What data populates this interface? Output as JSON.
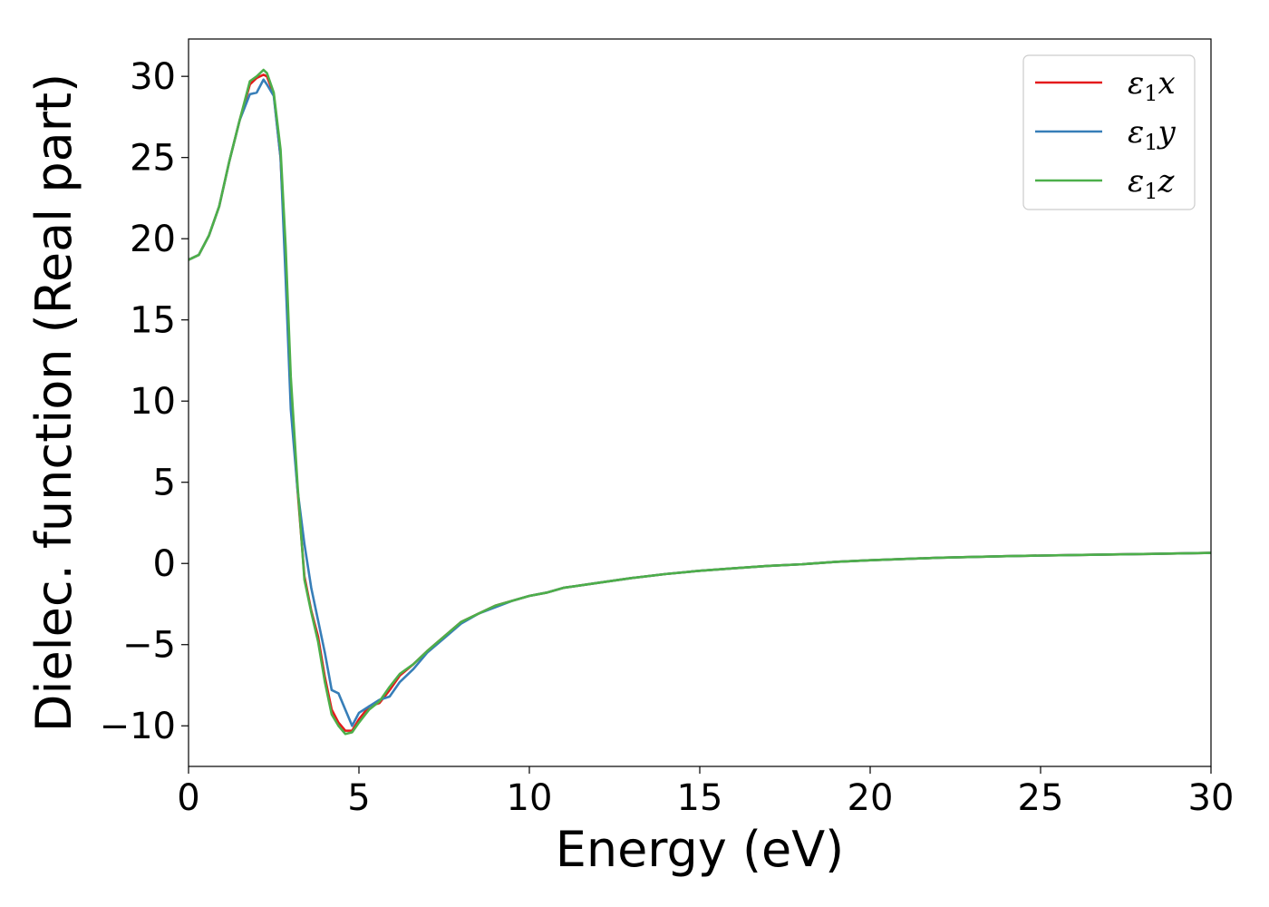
{
  "chart_data": {
    "type": "line",
    "title": "",
    "xlabel": "Energy (eV)",
    "ylabel": "Dielec. function (Real part)",
    "xlim": [
      0,
      30
    ],
    "ylim": [
      -12.5,
      32.3
    ],
    "xticks": [
      0,
      5,
      10,
      15,
      20,
      25,
      30
    ],
    "xtick_labels": [
      "0",
      "5",
      "10",
      "15",
      "20",
      "25",
      "30"
    ],
    "yticks": [
      -10,
      -5,
      0,
      5,
      10,
      15,
      20,
      25,
      30
    ],
    "ytick_labels": [
      "−10",
      "−5",
      "0",
      "5",
      "10",
      "15",
      "20",
      "25",
      "30"
    ],
    "grid": false,
    "legend_position": "top-right",
    "series": [
      {
        "name": "ε₁x",
        "symbol": "ε",
        "subscript": "1",
        "suffix": "x",
        "color": "#e41a1c",
        "x": [
          0,
          0.3,
          0.6,
          0.9,
          1.2,
          1.5,
          1.8,
          2.0,
          2.2,
          2.3,
          2.5,
          2.7,
          2.85,
          3.0,
          3.2,
          3.4,
          3.6,
          3.8,
          4.0,
          4.2,
          4.4,
          4.6,
          4.8,
          5.0,
          5.3,
          5.6,
          5.9,
          6.2,
          6.6,
          7.0,
          7.5,
          8.0,
          8.5,
          9.0,
          9.5,
          10.0,
          10.5,
          11,
          12,
          13,
          14,
          15,
          16,
          17,
          18,
          19,
          20,
          22,
          24,
          26,
          28,
          30
        ],
        "values": [
          18.7,
          19.0,
          20.2,
          22.0,
          24.8,
          27.3,
          29.5,
          29.9,
          30.1,
          30.0,
          28.9,
          25.0,
          18.5,
          10.5,
          4.5,
          -0.8,
          -2.9,
          -4.5,
          -7.0,
          -9.0,
          -9.8,
          -10.3,
          -10.3,
          -9.6,
          -8.8,
          -8.6,
          -7.8,
          -6.9,
          -6.2,
          -5.4,
          -4.5,
          -3.6,
          -3.1,
          -2.6,
          -2.3,
          -2.0,
          -1.8,
          -1.5,
          -1.2,
          -0.9,
          -0.65,
          -0.45,
          -0.3,
          -0.15,
          -0.05,
          0.1,
          0.2,
          0.35,
          0.45,
          0.52,
          0.58,
          0.65
        ]
      },
      {
        "name": "ε₁y",
        "symbol": "ε",
        "subscript": "1",
        "suffix": "y",
        "color": "#377eb8",
        "x": [
          0,
          0.3,
          0.6,
          0.9,
          1.2,
          1.5,
          1.8,
          2.0,
          2.2,
          2.3,
          2.5,
          2.7,
          2.85,
          3.0,
          3.2,
          3.4,
          3.6,
          3.8,
          4.0,
          4.2,
          4.4,
          4.6,
          4.8,
          5.0,
          5.3,
          5.6,
          5.9,
          6.2,
          6.6,
          7.0,
          7.5,
          8.0,
          8.5,
          9.0,
          9.5,
          10.0,
          10.5,
          11,
          12,
          13,
          14,
          15,
          16,
          17,
          18,
          19,
          20,
          22,
          24,
          26,
          28,
          30
        ],
        "values": [
          18.7,
          19.0,
          20.2,
          22.0,
          24.8,
          27.3,
          28.9,
          29.0,
          29.8,
          29.5,
          28.8,
          25.0,
          17.5,
          9.5,
          4.5,
          1.2,
          -1.5,
          -3.5,
          -5.5,
          -7.8,
          -8.0,
          -9.0,
          -10.0,
          -9.2,
          -8.8,
          -8.4,
          -8.2,
          -7.3,
          -6.5,
          -5.5,
          -4.6,
          -3.7,
          -3.1,
          -2.7,
          -2.3,
          -2.0,
          -1.8,
          -1.5,
          -1.2,
          -0.9,
          -0.65,
          -0.45,
          -0.3,
          -0.15,
          -0.05,
          0.1,
          0.2,
          0.35,
          0.45,
          0.52,
          0.58,
          0.65
        ]
      },
      {
        "name": "ε₁z",
        "symbol": "ε",
        "subscript": "1",
        "suffix": "z",
        "color": "#4daf4a",
        "x": [
          0,
          0.3,
          0.6,
          0.9,
          1.2,
          1.5,
          1.8,
          2.0,
          2.2,
          2.3,
          2.5,
          2.7,
          2.85,
          3.0,
          3.2,
          3.4,
          3.6,
          3.8,
          4.0,
          4.2,
          4.4,
          4.6,
          4.8,
          5.0,
          5.3,
          5.6,
          5.9,
          6.2,
          6.6,
          7.0,
          7.5,
          8.0,
          8.5,
          9.0,
          9.5,
          10.0,
          10.5,
          11,
          12,
          13,
          14,
          15,
          16,
          17,
          18,
          19,
          20,
          22,
          24,
          26,
          28,
          30
        ],
        "values": [
          18.7,
          19.0,
          20.2,
          22.0,
          24.8,
          27.3,
          29.7,
          30.0,
          30.4,
          30.2,
          29.0,
          25.5,
          19.5,
          11.5,
          4.8,
          -1.0,
          -3.0,
          -4.8,
          -7.3,
          -9.3,
          -10.0,
          -10.5,
          -10.4,
          -9.8,
          -9.0,
          -8.5,
          -7.6,
          -6.8,
          -6.2,
          -5.4,
          -4.5,
          -3.6,
          -3.1,
          -2.6,
          -2.3,
          -2.0,
          -1.8,
          -1.5,
          -1.2,
          -0.9,
          -0.65,
          -0.45,
          -0.3,
          -0.15,
          -0.05,
          0.1,
          0.2,
          0.35,
          0.45,
          0.52,
          0.58,
          0.65
        ]
      }
    ]
  }
}
